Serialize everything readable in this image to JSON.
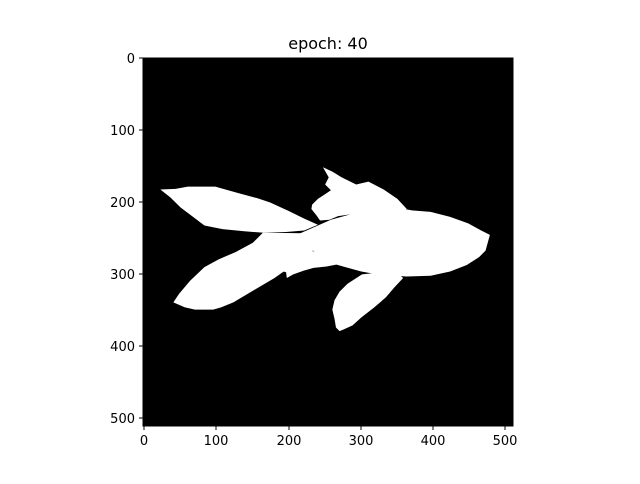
{
  "figure": {
    "title": "epoch: 40"
  },
  "image": {
    "description_name": "fish-silhouette-mask",
    "background_color": "#000000",
    "foreground_color": "#ffffff",
    "extent": [
      0,
      512
    ]
  },
  "axes": {
    "x_ticks": [
      "0",
      "100",
      "200",
      "300",
      "400",
      "500"
    ],
    "y_ticks": [
      "0",
      "100",
      "200",
      "300",
      "400",
      "500"
    ]
  }
}
